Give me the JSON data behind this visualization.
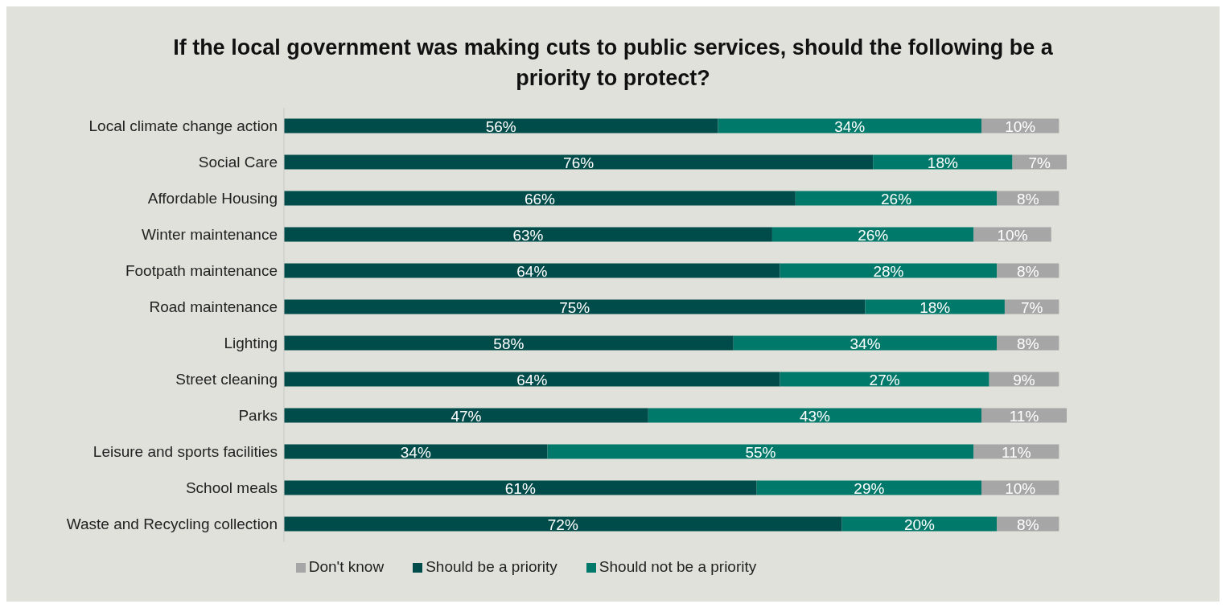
{
  "chart_data": {
    "type": "bar",
    "orientation": "horizontal",
    "stacked": true,
    "title": "If the local government was making cuts to public services, should the following be a priority to protect?",
    "categories": [
      "Local climate change action",
      "Social Care",
      "Affordable Housing",
      "Winter maintenance",
      "Footpath maintenance",
      "Road maintenance",
      "Lighting",
      "Street cleaning",
      "Parks",
      "Leisure and sports facilities",
      "School meals",
      "Waste and Recycling collection"
    ],
    "series": [
      {
        "name": "Should be a priority",
        "color": "#004c4a",
        "values": [
          56,
          76,
          66,
          63,
          64,
          75,
          58,
          64,
          47,
          34,
          61,
          72
        ],
        "value_labels": [
          "56%",
          "76%",
          "66%",
          "63%",
          "64%",
          "75%",
          "58%",
          "64%",
          "47%",
          "34%",
          "61%",
          "72%"
        ]
      },
      {
        "name": "Should not be a priority",
        "color": "#00796b",
        "values": [
          34,
          18,
          26,
          26,
          28,
          18,
          34,
          27,
          43,
          55,
          29,
          20
        ],
        "value_labels": [
          "34%",
          "18%",
          "26%",
          "26%",
          "28%",
          "18%",
          "34%",
          "27%",
          "43%",
          "55%",
          "29%",
          "20%"
        ]
      },
      {
        "name": "Don't know",
        "color": "#a6a6a6",
        "values": [
          10,
          7,
          8,
          10,
          8,
          7,
          8,
          9,
          11,
          11,
          10,
          8
        ],
        "value_labels": [
          "10%",
          "7%",
          "8%",
          "10%",
          "8%",
          "7%",
          "8%",
          "9%",
          "11%",
          "11%",
          "10%",
          "8%"
        ]
      }
    ],
    "grid": false,
    "legend": "bottom"
  }
}
